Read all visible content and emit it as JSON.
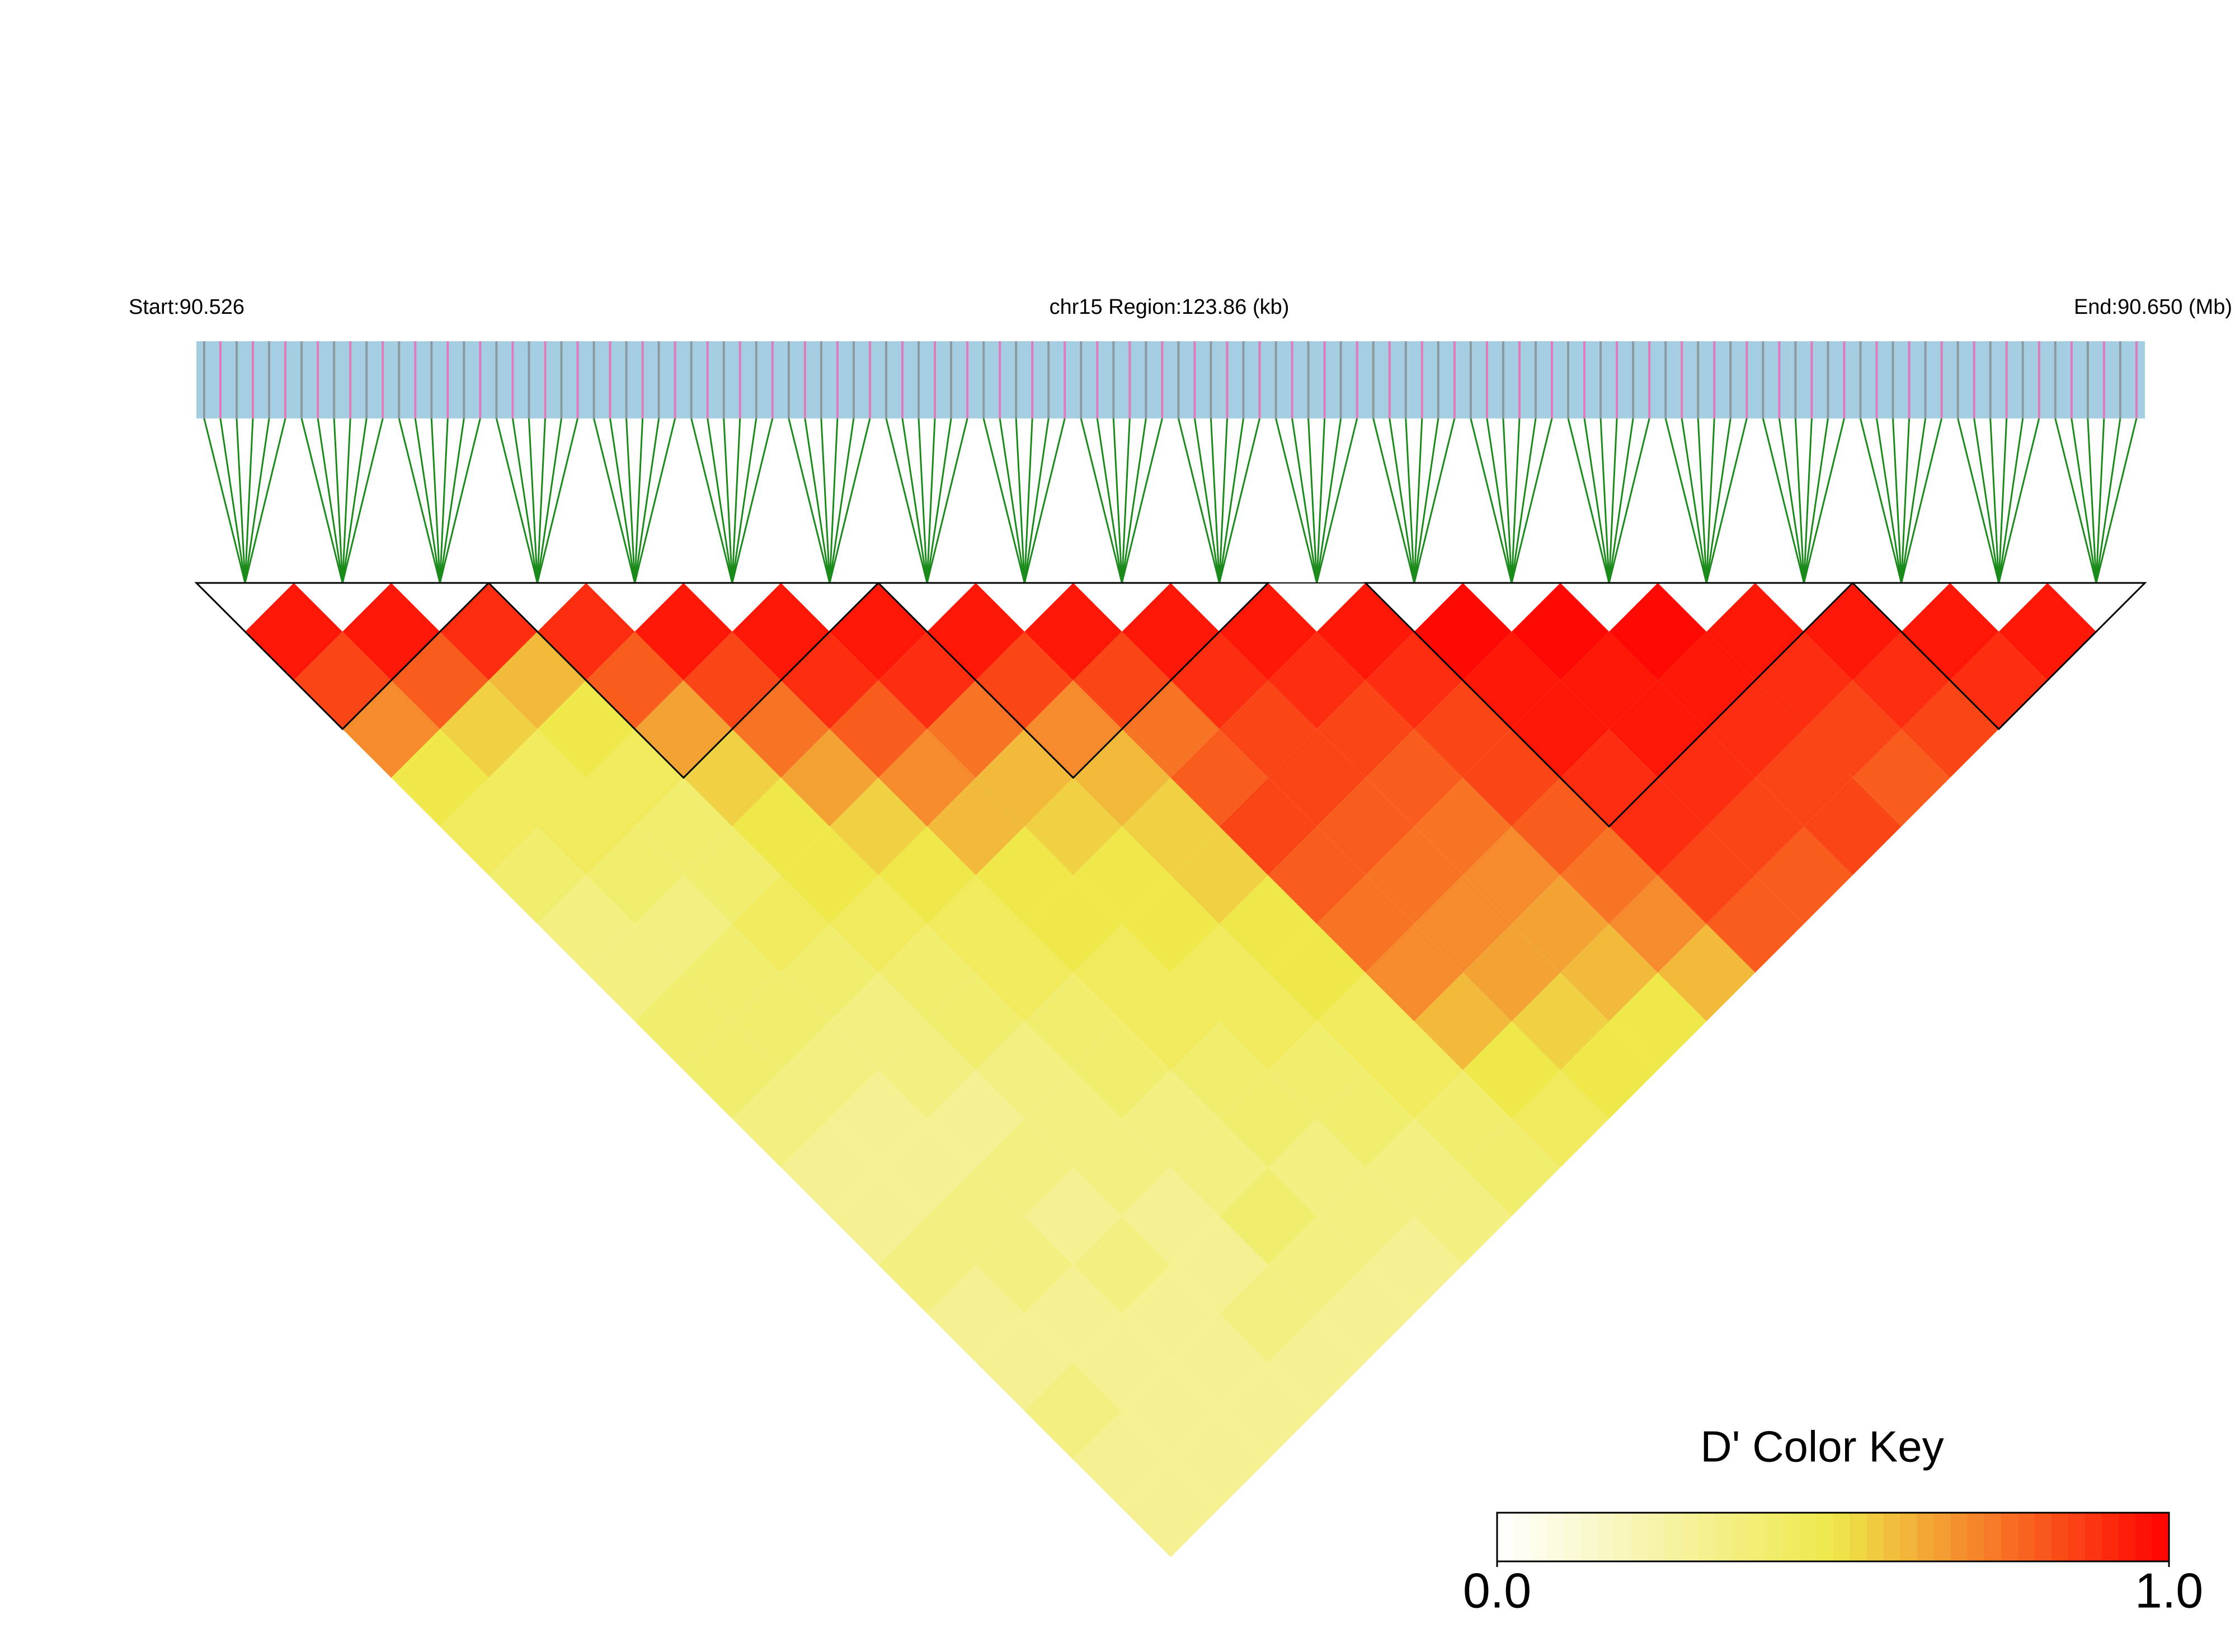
{
  "chart_data": {
    "type": "ld_heatmap",
    "start_label": "Start:90.526",
    "region_label": "chr15 Region:123.86 (kb)",
    "end_label": "End:90.650 (Mb)",
    "key_title": "D' Color Key",
    "colors": [
      "#ffffff",
      "#eee84a",
      "#ff0000"
    ],
    "key_lim": [
      0,
      1
    ],
    "key_ticks": [
      {
        "value": 0,
        "label": "0.0"
      },
      {
        "value": 1,
        "label": "1.0"
      }
    ],
    "values": [
      [
        0.95,
        0.85,
        0.7,
        0.5,
        0.45,
        0.4,
        0.35,
        0.35,
        0.4,
        0.4,
        0.35,
        0.3,
        0.3,
        0.35,
        0.3,
        0.3,
        0.35,
        0.3,
        0.3
      ],
      [
        0.95,
        0.8,
        0.55,
        0.45,
        0.45,
        0.4,
        0.35,
        0.4,
        0.4,
        0.35,
        0.3,
        0.3,
        0.35,
        0.35,
        0.3,
        0.3,
        0.3,
        0.3
      ],
      [
        0.9,
        0.6,
        0.5,
        0.45,
        0.4,
        0.4,
        0.45,
        0.4,
        0.35,
        0.35,
        0.3,
        0.35,
        0.3,
        0.35,
        0.3,
        0.3,
        0.3
      ],
      [
        0.9,
        0.8,
        0.65,
        0.55,
        0.5,
        0.5,
        0.45,
        0.4,
        0.4,
        0.35,
        0.35,
        0.35,
        0.3,
        0.3,
        0.35,
        0.3
      ],
      [
        0.95,
        0.85,
        0.75,
        0.65,
        0.55,
        0.5,
        0.45,
        0.45,
        0.4,
        0.4,
        0.35,
        0.35,
        0.4,
        0.35,
        0.3
      ],
      [
        0.95,
        0.9,
        0.8,
        0.7,
        0.6,
        0.5,
        0.5,
        0.45,
        0.45,
        0.4,
        0.4,
        0.35,
        0.35,
        0.3
      ],
      [
        0.95,
        0.9,
        0.75,
        0.6,
        0.55,
        0.5,
        0.5,
        0.45,
        0.45,
        0.4,
        0.4,
        0.35,
        0.35
      ],
      [
        0.95,
        0.85,
        0.7,
        0.6,
        0.55,
        0.55,
        0.5,
        0.5,
        0.45,
        0.45,
        0.4,
        0.4
      ],
      [
        0.95,
        0.85,
        0.75,
        0.8,
        0.85,
        0.8,
        0.75,
        0.7,
        0.6,
        0.5,
        0.45
      ],
      [
        0.95,
        0.9,
        0.85,
        0.85,
        0.8,
        0.75,
        0.7,
        0.65,
        0.55,
        0.5
      ],
      [
        0.95,
        0.9,
        0.85,
        0.8,
        0.75,
        0.7,
        0.65,
        0.6,
        0.5
      ],
      [
        0.95,
        0.9,
        0.85,
        0.85,
        0.8,
        0.75,
        0.7,
        0.6
      ],
      [
        0.98,
        0.95,
        0.95,
        0.9,
        0.9,
        0.85,
        0.8
      ],
      [
        0.98,
        0.95,
        0.95,
        0.9,
        0.85,
        0.8
      ],
      [
        0.98,
        0.95,
        0.9,
        0.85,
        0.85
      ],
      [
        0.95,
        0.9,
        0.85,
        0.8
      ],
      [
        0.95,
        0.9,
        0.85
      ],
      [
        0.95,
        0.9
      ],
      [
        0.95
      ]
    ],
    "blocks": [
      [
        0,
        2
      ],
      [
        3,
        6
      ],
      [
        7,
        10
      ],
      [
        12,
        16
      ],
      [
        17,
        19
      ]
    ]
  }
}
